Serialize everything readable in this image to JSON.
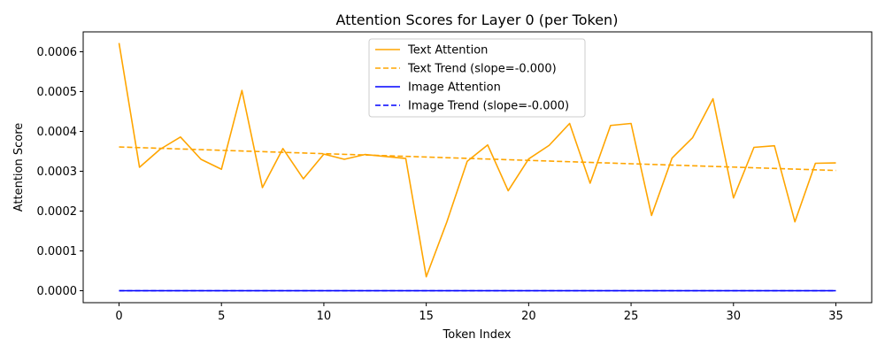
{
  "chart_data": {
    "type": "line",
    "title": "Attention Scores for Layer 0 (per Token)",
    "xlabel": "Token Index",
    "ylabel": "Attention Score",
    "xlim": [
      -1.75,
      36.75
    ],
    "ylim": [
      -3e-05,
      0.00065
    ],
    "x_ticks": [
      0,
      5,
      10,
      15,
      20,
      25,
      30,
      35
    ],
    "y_ticks": [
      0.0,
      0.0001,
      0.0002,
      0.0003,
      0.0004,
      0.0005,
      0.0006
    ],
    "y_tick_labels": [
      "0.0000",
      "0.0001",
      "0.0002",
      "0.0003",
      "0.0004",
      "0.0005",
      "0.0006"
    ],
    "grid": false,
    "legend_position": "upper center",
    "x": [
      0,
      1,
      2,
      3,
      4,
      5,
      6,
      7,
      8,
      9,
      10,
      11,
      12,
      13,
      14,
      15,
      16,
      17,
      18,
      19,
      20,
      21,
      22,
      23,
      24,
      25,
      26,
      27,
      28,
      29,
      30,
      31,
      32,
      33,
      34,
      35
    ],
    "series": [
      {
        "name": "Text Attention",
        "color": "#FFA500",
        "style": "solid",
        "values": [
          0.000622,
          0.00031,
          0.000355,
          0.000386,
          0.00033,
          0.000305,
          0.000503,
          0.000259,
          0.000357,
          0.000281,
          0.000343,
          0.00033,
          0.000342,
          0.000337,
          0.000332,
          3.5e-05,
          0.000172,
          0.000325,
          0.000366,
          0.000251,
          0.000331,
          0.000365,
          0.00042,
          0.00027,
          0.000415,
          0.00042,
          0.000189,
          0.000333,
          0.000384,
          0.000482,
          0.000233,
          0.00036,
          0.000364,
          0.000173,
          0.00032,
          0.000321
        ]
      },
      {
        "name": "Text Trend (slope=-0.000)",
        "color": "#FFA500",
        "style": "dashed",
        "values_endpoints": [
          0.000361,
          0.000302
        ]
      },
      {
        "name": "Image Attention",
        "color": "#0000FF",
        "style": "solid",
        "values": [
          0,
          0,
          0,
          0,
          0,
          0,
          0,
          0,
          0,
          0,
          0,
          0,
          0,
          0,
          0,
          0,
          0,
          0,
          0,
          0,
          0,
          0,
          0,
          0,
          0,
          0,
          0,
          0,
          0,
          0,
          0,
          0,
          0,
          0,
          0,
          0
        ]
      },
      {
        "name": "Image Trend (slope=-0.000)",
        "color": "#0000FF",
        "style": "dashed",
        "values_endpoints": [
          0.0,
          0.0
        ]
      }
    ]
  }
}
